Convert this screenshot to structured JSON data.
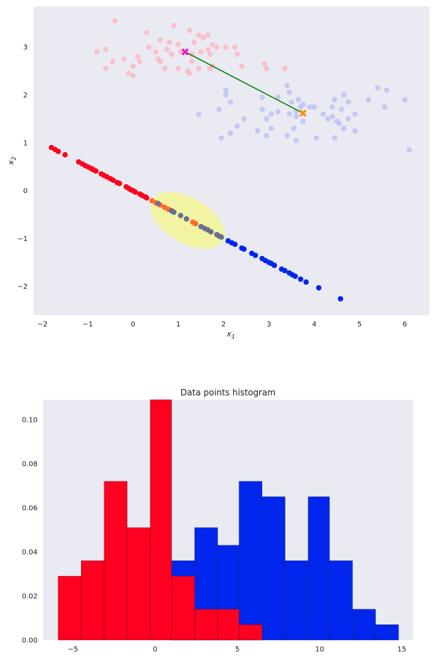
{
  "colors": {
    "background": "#eaeaf2",
    "red": "#ff0020",
    "blue": "#0026ee",
    "orange_x": "#ff8c00",
    "magenta_x": "#e619c8",
    "connector": "#008000",
    "ellipse": "#f4f59a",
    "proj_orange": "#ff6a2a",
    "proj_gray": "#6b6f8a"
  },
  "chart_data": [
    {
      "type": "scatter",
      "title": "",
      "xlabel": "x_1",
      "ylabel": "x_2",
      "xlabel_parts": {
        "base": "x",
        "sub": "1"
      },
      "ylabel_parts": {
        "base": "x",
        "sub": "2"
      },
      "xlim": [
        -2.2,
        6.55
      ],
      "ylim": [
        -2.6,
        3.85
      ],
      "xticks": [
        -2,
        -1,
        0,
        1,
        2,
        3,
        4,
        5,
        6
      ],
      "yticks": [
        -2,
        -1,
        0,
        1,
        2,
        3
      ],
      "xtick_labels": [
        "−2",
        "−1",
        "0",
        "1",
        "2",
        "3",
        "4",
        "5",
        "6"
      ],
      "ytick_labels": [
        "−2",
        "−1",
        "0",
        "1",
        "2",
        "3"
      ],
      "grid": false,
      "series": [
        {
          "role": "class-a-faded",
          "color": "#ffb3bd",
          "points": [
            [
              -0.4,
              3.55
            ],
            [
              0.3,
              3.3
            ],
            [
              0.9,
              3.45
            ],
            [
              1.25,
              3.35
            ],
            [
              1.45,
              3.25
            ],
            [
              1.55,
              3.2
            ],
            [
              1.65,
              3.25
            ],
            [
              0.8,
              3.1
            ],
            [
              0.6,
              3.15
            ],
            [
              1.0,
              3.05
            ],
            [
              1.35,
              3.1
            ],
            [
              1.75,
              3.05
            ],
            [
              0.35,
              3.0
            ],
            [
              0.75,
              2.95
            ],
            [
              1.05,
              2.9
            ],
            [
              1.65,
              2.95
            ],
            [
              1.85,
              3.0
            ],
            [
              2.05,
              3.0
            ],
            [
              2.25,
              3.0
            ],
            [
              -0.8,
              2.9
            ],
            [
              -0.6,
              2.95
            ],
            [
              0.5,
              2.9
            ],
            [
              0.85,
              2.85
            ],
            [
              1.15,
              2.9
            ],
            [
              1.3,
              2.85
            ],
            [
              1.5,
              2.9
            ],
            [
              1.7,
              2.85
            ],
            [
              -0.2,
              2.75
            ],
            [
              0.1,
              2.8
            ],
            [
              0.55,
              2.75
            ],
            [
              2.3,
              2.85
            ],
            [
              -0.45,
              2.7
            ],
            [
              0.15,
              2.7
            ],
            [
              0.6,
              2.7
            ],
            [
              1.3,
              2.7
            ],
            [
              1.75,
              2.6
            ],
            [
              2.4,
              2.6
            ],
            [
              2.9,
              2.65
            ],
            [
              0.0,
              2.6
            ],
            [
              0.7,
              2.55
            ],
            [
              1.45,
              2.55
            ],
            [
              1.7,
              2.55
            ],
            [
              2.95,
              2.55
            ],
            [
              3.35,
              2.55
            ],
            [
              -0.6,
              2.55
            ],
            [
              -0.1,
              2.45
            ],
            [
              0.0,
              2.4
            ],
            [
              1.2,
              2.5
            ],
            [
              1.25,
              2.45
            ],
            [
              1.0,
              2.55
            ]
          ]
        },
        {
          "role": "class-b-faded",
          "color": "#b7bdf3",
          "points": [
            [
              2.05,
              2.1
            ],
            [
              2.05,
              2.0
            ],
            [
              2.15,
              1.85
            ],
            [
              2.85,
              1.95
            ],
            [
              3.2,
              1.95
            ],
            [
              3.4,
              2.2
            ],
            [
              3.45,
              2.05
            ],
            [
              3.5,
              1.85
            ],
            [
              3.65,
              1.9
            ],
            [
              3.7,
              1.75
            ],
            [
              3.75,
              1.8
            ],
            [
              3.9,
              1.75
            ],
            [
              4.0,
              1.75
            ],
            [
              3.6,
              1.65
            ],
            [
              3.6,
              1.55
            ],
            [
              3.45,
              1.6
            ],
            [
              3.2,
              1.65
            ],
            [
              3.05,
              1.6
            ],
            [
              2.95,
              1.5
            ],
            [
              2.85,
              1.7
            ],
            [
              2.45,
              1.5
            ],
            [
              2.3,
              1.35
            ],
            [
              1.9,
              1.7
            ],
            [
              1.45,
              1.6
            ],
            [
              4.2,
              1.6
            ],
            [
              4.3,
              1.5
            ],
            [
              4.4,
              1.55
            ],
            [
              4.5,
              1.45
            ],
            [
              4.55,
              1.4
            ],
            [
              4.75,
              1.5
            ],
            [
              4.9,
              1.6
            ],
            [
              4.6,
              1.7
            ],
            [
              4.4,
              1.75
            ],
            [
              4.45,
              1.9
            ],
            [
              4.65,
              2.0
            ],
            [
              4.75,
              1.85
            ],
            [
              5.2,
              1.9
            ],
            [
              5.4,
              2.15
            ],
            [
              5.6,
              2.1
            ],
            [
              5.55,
              1.75
            ],
            [
              6.0,
              1.9
            ],
            [
              3.75,
              1.45
            ],
            [
              2.75,
              1.25
            ],
            [
              3.05,
              1.3
            ],
            [
              3.55,
              1.3
            ],
            [
              2.95,
              1.15
            ],
            [
              3.4,
              1.15
            ],
            [
              3.6,
              1.05
            ],
            [
              4.05,
              1.1
            ],
            [
              4.45,
              1.1
            ],
            [
              4.65,
              1.3
            ],
            [
              4.9,
              1.25
            ],
            [
              2.15,
              1.2
            ],
            [
              1.95,
              1.1
            ],
            [
              6.1,
              0.85
            ]
          ]
        },
        {
          "role": "class-a-projected",
          "color": "#ff0020",
          "points": [
            [
              -1.8,
              0.9
            ],
            [
              -1.72,
              0.86
            ],
            [
              -1.65,
              0.82
            ],
            [
              -1.5,
              0.75
            ],
            [
              -1.2,
              0.6
            ],
            [
              -1.12,
              0.56
            ],
            [
              -1.05,
              0.52
            ],
            [
              -0.98,
              0.49
            ],
            [
              -0.92,
              0.46
            ],
            [
              -0.88,
              0.44
            ],
            [
              -0.82,
              0.41
            ],
            [
              -0.7,
              0.35
            ],
            [
              -0.64,
              0.32
            ],
            [
              -0.58,
              0.29
            ],
            [
              -0.5,
              0.25
            ],
            [
              -0.44,
              0.22
            ],
            [
              -0.35,
              0.17
            ],
            [
              -0.3,
              0.15
            ],
            [
              -0.15,
              0.08
            ],
            [
              -0.1,
              0.05
            ],
            [
              -0.05,
              0.02
            ],
            [
              0.0,
              0.0
            ],
            [
              0.05,
              -0.03
            ],
            [
              0.15,
              -0.07
            ],
            [
              0.2,
              -0.1
            ],
            [
              0.27,
              -0.13
            ],
            [
              0.3,
              -0.15
            ]
          ]
        },
        {
          "role": "projected-in-ellipse-orange",
          "color": "#ff6a2a",
          "points": [
            [
              0.42,
              -0.21
            ],
            [
              0.5,
              -0.25
            ],
            [
              0.6,
              -0.3
            ],
            [
              0.7,
              -0.35
            ],
            [
              0.78,
              -0.39
            ],
            [
              1.32,
              -0.66
            ],
            [
              1.38,
              -0.69
            ]
          ]
        },
        {
          "role": "projected-in-ellipse-gray",
          "color": "#6b6f8a",
          "points": [
            [
              0.55,
              -0.27
            ],
            [
              0.85,
              -0.42
            ],
            [
              0.9,
              -0.45
            ],
            [
              1.05,
              -0.52
            ],
            [
              1.18,
              -0.59
            ],
            [
              1.5,
              -0.75
            ],
            [
              1.58,
              -0.79
            ],
            [
              1.65,
              -0.82
            ],
            [
              1.72,
              -0.86
            ],
            [
              1.85,
              -0.92
            ],
            [
              1.9,
              -0.95
            ],
            [
              1.95,
              -0.97
            ]
          ]
        },
        {
          "role": "class-b-projected",
          "color": "#0026ee",
          "points": [
            [
              2.1,
              -1.05
            ],
            [
              2.18,
              -1.09
            ],
            [
              2.25,
              -1.12
            ],
            [
              2.4,
              -1.2
            ],
            [
              2.45,
              -1.22
            ],
            [
              2.62,
              -1.31
            ],
            [
              2.7,
              -1.35
            ],
            [
              2.85,
              -1.42
            ],
            [
              2.92,
              -1.46
            ],
            [
              3.0,
              -1.5
            ],
            [
              3.05,
              -1.52
            ],
            [
              3.12,
              -1.56
            ],
            [
              3.28,
              -1.64
            ],
            [
              3.35,
              -1.67
            ],
            [
              3.45,
              -1.72
            ],
            [
              3.52,
              -1.76
            ],
            [
              3.58,
              -1.79
            ],
            [
              3.7,
              -1.85
            ],
            [
              3.82,
              -1.91
            ],
            [
              4.1,
              -2.03
            ],
            [
              4.58,
              -2.26
            ]
          ]
        }
      ],
      "markers": [
        {
          "name": "class-a-mean",
          "shape": "x",
          "x": 1.15,
          "y": 2.9,
          "color": "#e619c8"
        },
        {
          "name": "class-b-mean",
          "shape": "x",
          "x": 3.75,
          "y": 1.62,
          "color": "#ff8c00"
        }
      ],
      "segment": {
        "from": [
          1.15,
          2.9
        ],
        "to": [
          3.75,
          1.62
        ],
        "color": "#008000"
      },
      "ellipse": {
        "cx": 1.2,
        "cy": -0.62,
        "rx": 0.9,
        "ry": 0.5,
        "angle_deg": -30,
        "color": "#f4f59a"
      }
    },
    {
      "type": "histogram",
      "title": "Data points histogram",
      "xlabel": "",
      "ylabel": "",
      "xlim": [
        -6.8,
        15.7
      ],
      "ylim": [
        0,
        0.109
      ],
      "xticks": [
        -5,
        0,
        5,
        10,
        15
      ],
      "yticks": [
        0.0,
        0.02,
        0.04,
        0.06,
        0.08,
        0.1
      ],
      "xtick_labels": [
        "−5",
        "0",
        "5",
        "10",
        "15"
      ],
      "ytick_labels": [
        "0.00",
        "0.02",
        "0.04",
        "0.06",
        "0.08",
        "0.10"
      ],
      "grid": false,
      "series": [
        {
          "role": "class-b",
          "color": "#0026ee",
          "bins": [
            [
              1.0,
              2.4,
              0.036
            ],
            [
              2.4,
              3.8,
              0.051
            ],
            [
              3.8,
              5.1,
              0.043
            ],
            [
              5.1,
              6.5,
              0.072
            ],
            [
              6.5,
              7.9,
              0.065
            ],
            [
              7.9,
              9.3,
              0.036
            ],
            [
              9.3,
              10.6,
              0.065
            ],
            [
              10.6,
              12.0,
              0.036
            ],
            [
              12.0,
              13.4,
              0.014
            ],
            [
              13.4,
              14.8,
              0.007
            ]
          ]
        },
        {
          "role": "class-a",
          "color": "#ff0020",
          "bins": [
            [
              -5.9,
              -4.5,
              0.029
            ],
            [
              -4.5,
              -3.1,
              0.036
            ],
            [
              -3.1,
              -1.7,
              0.072
            ],
            [
              -1.7,
              -0.3,
              0.051
            ],
            [
              -0.3,
              1.0,
              0.109
            ],
            [
              1.0,
              2.4,
              0.029
            ],
            [
              2.4,
              3.8,
              0.014
            ],
            [
              3.8,
              5.1,
              0.014
            ],
            [
              5.1,
              6.5,
              0.007
            ]
          ]
        }
      ]
    }
  ]
}
